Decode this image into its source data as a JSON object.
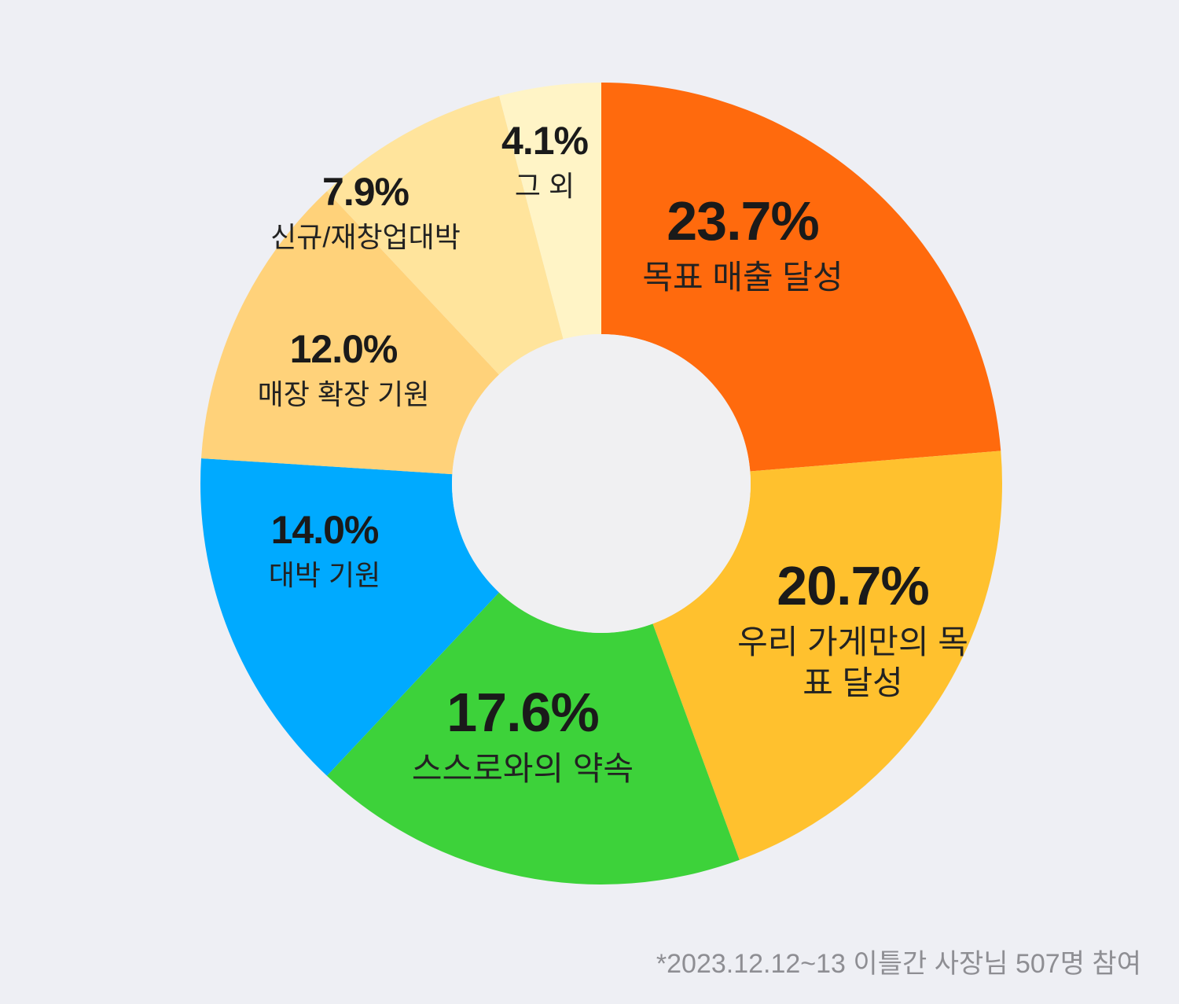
{
  "chart_data": {
    "type": "donut",
    "categories": [
      "목표 매출 달성",
      "우리 가게만의 목표 달성",
      "스스로와의 약속",
      "대박 기원",
      "매장 확장 기원",
      "신규/재창업대박",
      "그 외"
    ],
    "values": [
      23.7,
      20.7,
      17.6,
      14.0,
      12.0,
      7.9,
      4.1
    ],
    "value_labels": [
      "23.7%",
      "20.7%",
      "17.6%",
      "14.0%",
      "12.0%",
      "7.9%",
      "4.1%"
    ],
    "colors": [
      "#ff6a0d",
      "#ffc12e",
      "#3dd23a",
      "#00aaff",
      "#ffd27a",
      "#ffe49c",
      "#fff4c6"
    ],
    "footnote": "*2023.12.12~13 이틀간 사장님 507명 참여"
  }
}
